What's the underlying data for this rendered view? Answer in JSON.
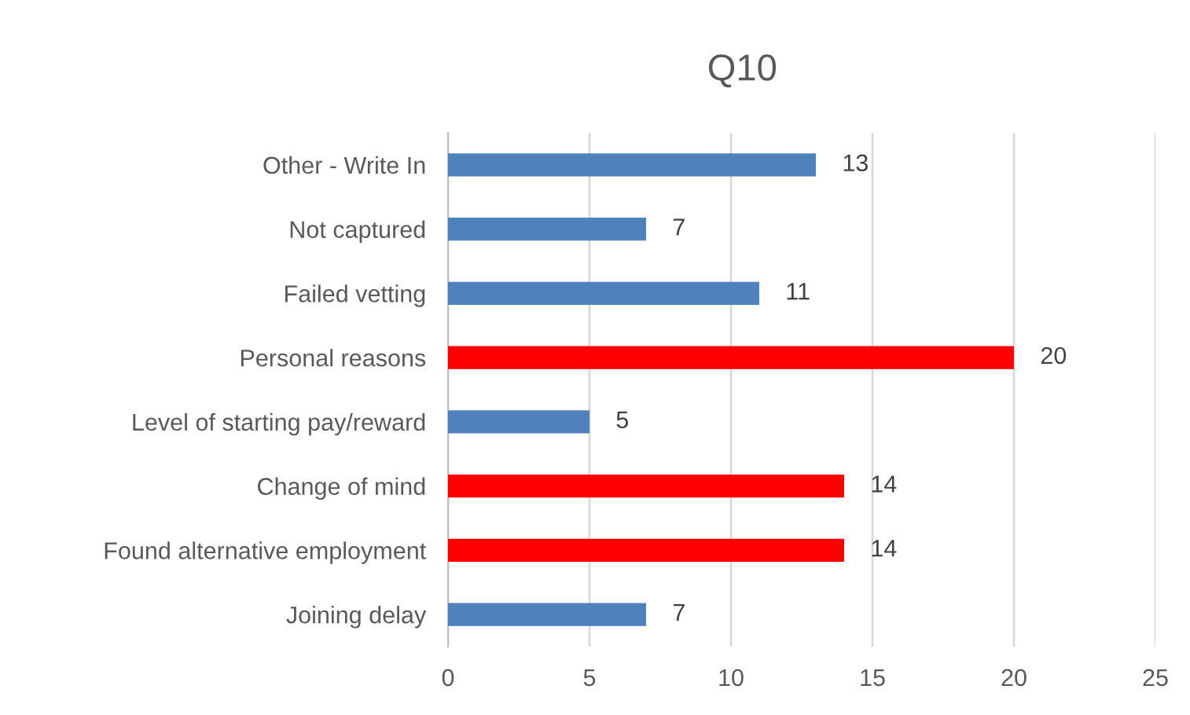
{
  "chart_data": {
    "type": "bar",
    "title": "Q10",
    "orientation": "horizontal",
    "categories": [
      "Other - Write In",
      "Not captured",
      "Failed vetting",
      "Personal reasons",
      "Level of starting pay/reward",
      "Change of mind",
      "Found alternative employment",
      "Joining delay"
    ],
    "values": [
      13,
      7,
      11,
      20,
      5,
      14,
      14,
      7
    ],
    "colors": [
      "#4f81bd",
      "#4f81bd",
      "#4f81bd",
      "#ff0000",
      "#4f81bd",
      "#ff0000",
      "#ff0000",
      "#4f81bd"
    ],
    "xlim": [
      0,
      25
    ],
    "xticks": [
      0,
      5,
      10,
      15,
      20,
      25
    ],
    "grid": "x",
    "data_labels": true,
    "legend": false
  }
}
